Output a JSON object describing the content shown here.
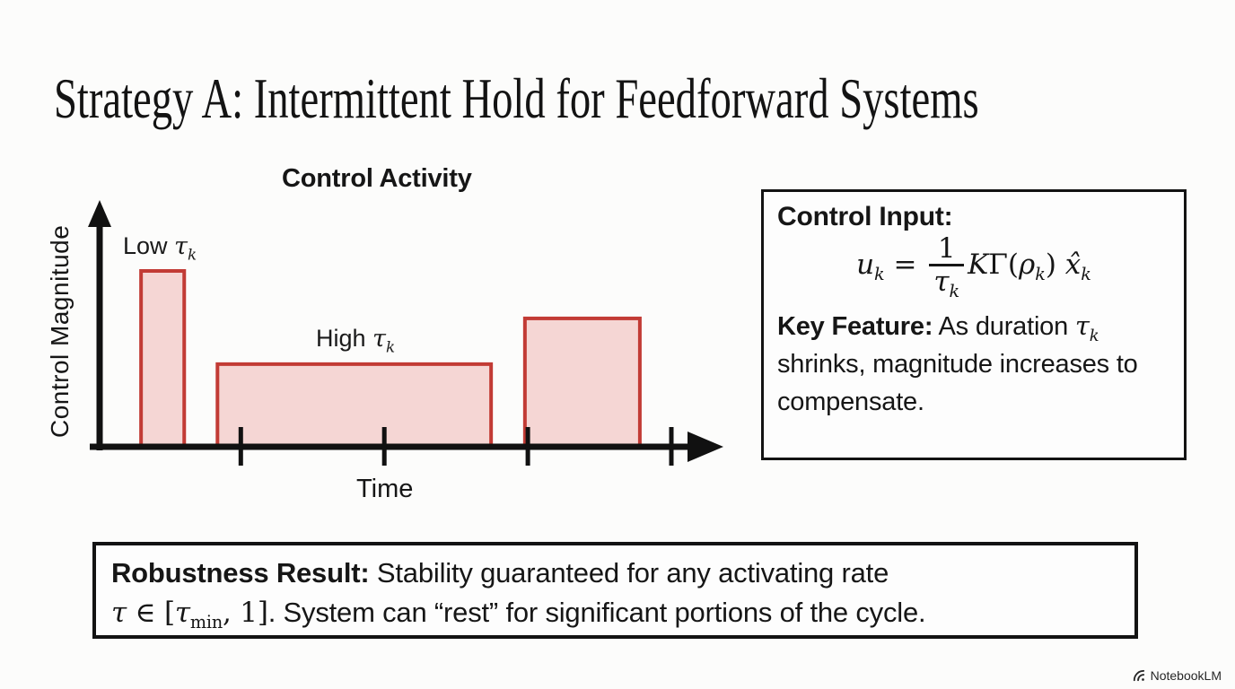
{
  "slide": {
    "title": "Strategy A: Intermittent Hold for Feedforward Systems"
  },
  "chart_data": {
    "type": "bar",
    "title": "Control Activity",
    "xlabel": "Time",
    "ylabel": "Control Magnitude",
    "x_range": [
      0,
      10
    ],
    "y_range": [
      0,
      8
    ],
    "grid": false,
    "bars": [
      {
        "name": "low-tau",
        "label": "Low τk",
        "t_start": 0.71,
        "duration": 0.74,
        "magnitude": 7.0
      },
      {
        "name": "high-tau",
        "label": "High τk",
        "t_start": 2.02,
        "duration": 4.69,
        "magnitude": 3.29
      },
      {
        "name": "medium-tau",
        "label": "",
        "t_start": 7.29,
        "duration": 1.97,
        "magnitude": 5.11
      }
    ],
    "ticks_t": [
      2.42,
      4.88,
      7.34,
      9.8
    ],
    "colors": {
      "bar_fill": "#f5d6d4",
      "bar_stroke": "#c23b35",
      "axis": "#111111"
    },
    "annotations": {
      "low": {
        "text": "Low ",
        "tau": "τ",
        "tau_sub": "k"
      },
      "high": {
        "text": "High ",
        "tau": "τ",
        "tau_sub": "k"
      }
    }
  },
  "control_input_box": {
    "heading": "Control Input:",
    "formula": {
      "lhs": "u",
      "lhs_sub": "k",
      "equals": " = ",
      "num": "1",
      "den": "τ",
      "den_sub": "k",
      "K": "K",
      "gamma_open": "Γ(",
      "rho": "ρ",
      "rho_sub": "k",
      "close": ") ",
      "xhat": "x̂",
      "xhat_sub": "k"
    },
    "key_feature": {
      "label": "Key Feature:",
      "before": " As duration ",
      "tau": "τ",
      "tau_sub": "k",
      "after": " shrinks, magnitude increases to compensate."
    }
  },
  "robustness_box": {
    "label": "Robustness Result:",
    "line1": " Stability guaranteed for any activating rate",
    "math": {
      "tau": "τ",
      "element_of": " ∈ ",
      "open": "[",
      "tau2": "τ",
      "min_sub": "min",
      "rest": ", 1]"
    },
    "line2_after": ". System can “rest” for significant portions of the cycle."
  },
  "watermark": {
    "label": "NotebookLM"
  }
}
